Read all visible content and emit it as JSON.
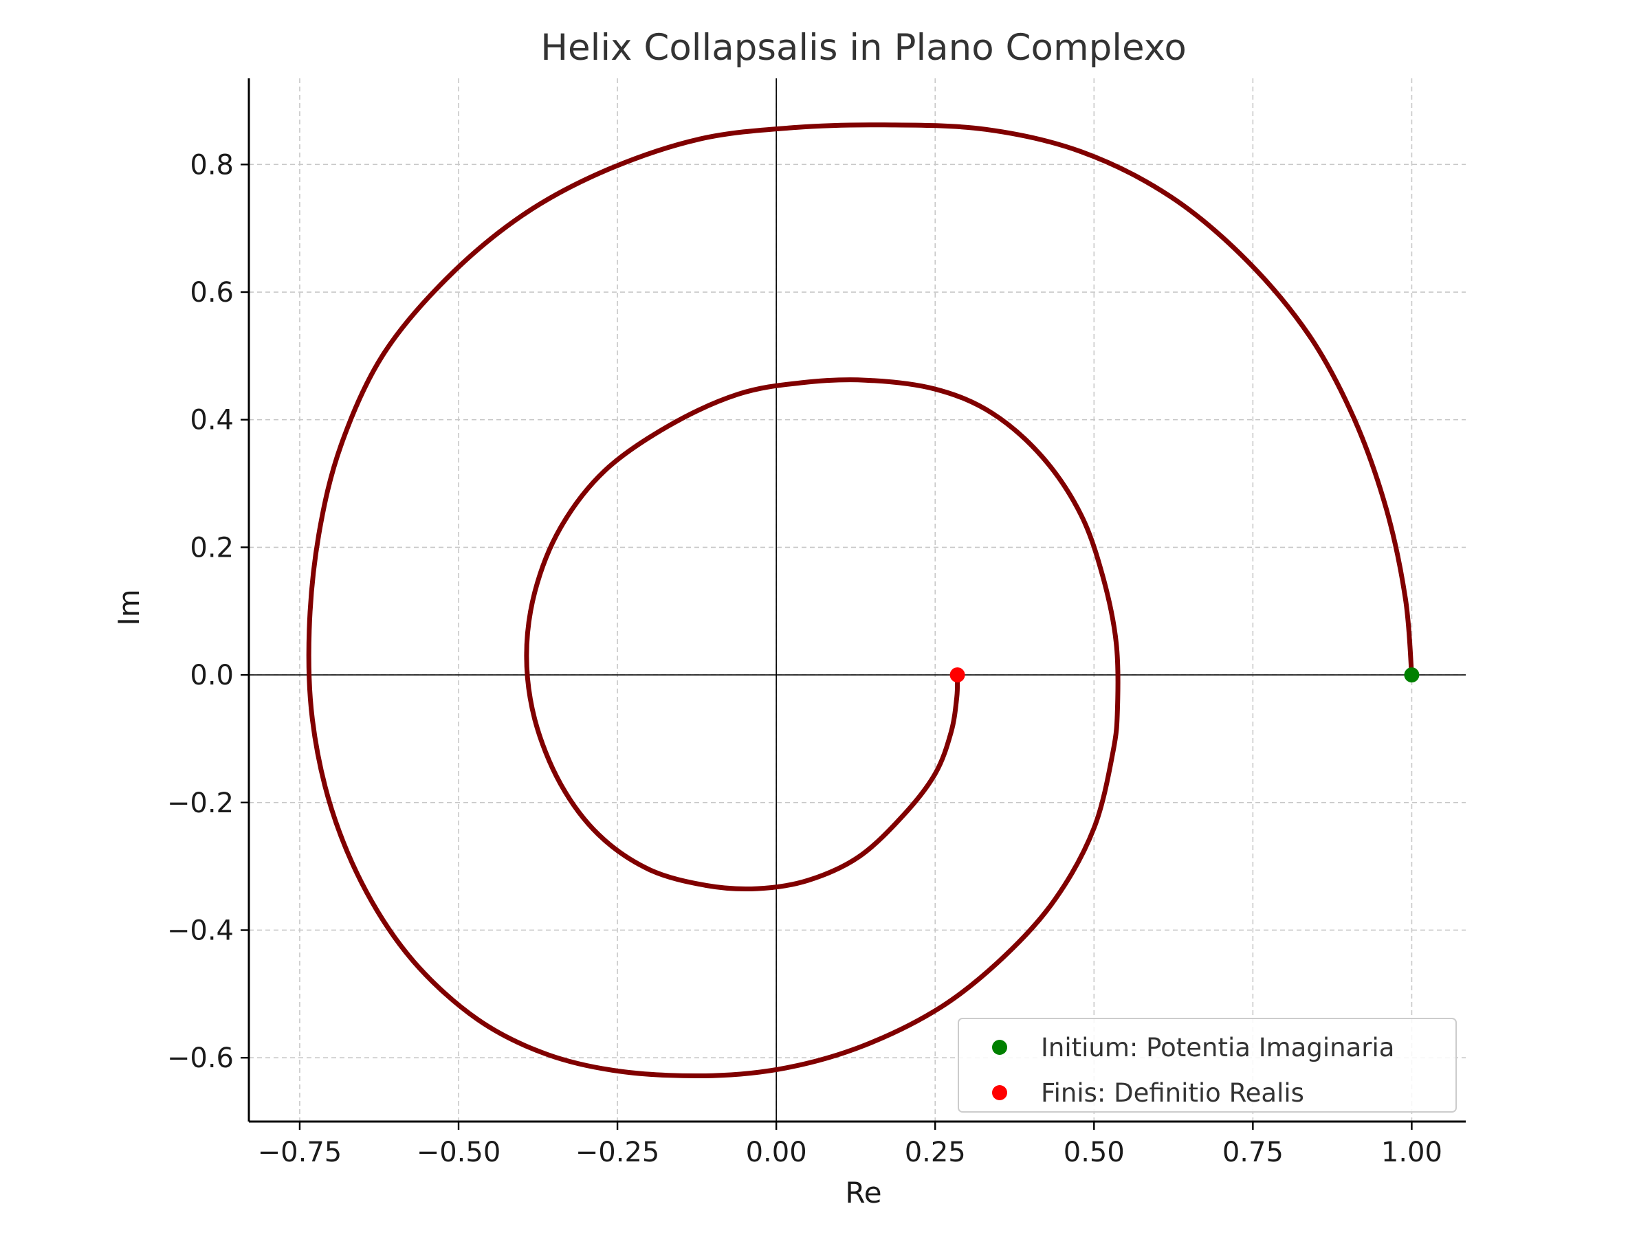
{
  "chart_data": {
    "type": "line",
    "title": "Helix Collapsalis in Plano Complexo",
    "xlabel": "Re",
    "ylabel": "Im",
    "xlim": [
      -0.83,
      1.085
    ],
    "ylim": [
      -0.7,
      0.935
    ],
    "xticks": [
      -0.75,
      -0.5,
      -0.25,
      0.0,
      0.25,
      0.5,
      0.75,
      1.0
    ],
    "xtick_labels": [
      "−0.75",
      "−0.50",
      "−0.25",
      "0.00",
      "0.25",
      "0.50",
      "0.75",
      "1.00"
    ],
    "yticks": [
      -0.6,
      -0.4,
      -0.2,
      0.0,
      0.2,
      0.4,
      0.6,
      0.8
    ],
    "ytick_labels": [
      "−0.6",
      "−0.4",
      "−0.2",
      "0.0",
      "0.2",
      "0.4",
      "0.6",
      "0.8"
    ],
    "grid": true,
    "reference_lines": {
      "x": 0,
      "y": 0
    },
    "series": [
      {
        "kind": "curve",
        "color": "#800000",
        "points": [
          [
            1.0,
            0.0
          ],
          [
            0.99,
            0.12
          ],
          [
            0.96,
            0.26
          ],
          [
            0.91,
            0.4
          ],
          [
            0.84,
            0.53
          ],
          [
            0.74,
            0.65
          ],
          [
            0.62,
            0.75
          ],
          [
            0.48,
            0.82
          ],
          [
            0.33,
            0.855
          ],
          [
            0.17,
            0.862
          ],
          [
            0.03,
            0.858
          ],
          [
            -0.12,
            0.84
          ],
          [
            -0.27,
            0.79
          ],
          [
            -0.4,
            0.72
          ],
          [
            -0.52,
            0.62
          ],
          [
            -0.62,
            0.5
          ],
          [
            -0.685,
            0.36
          ],
          [
            -0.72,
            0.22
          ],
          [
            -0.735,
            0.07
          ],
          [
            -0.73,
            -0.07
          ],
          [
            -0.7,
            -0.21
          ],
          [
            -0.645,
            -0.34
          ],
          [
            -0.57,
            -0.45
          ],
          [
            -0.47,
            -0.54
          ],
          [
            -0.36,
            -0.595
          ],
          [
            -0.24,
            -0.622
          ],
          [
            -0.1,
            -0.628
          ],
          [
            0.02,
            -0.615
          ],
          [
            0.14,
            -0.58
          ],
          [
            0.26,
            -0.52
          ],
          [
            0.36,
            -0.44
          ],
          [
            0.44,
            -0.35
          ],
          [
            0.5,
            -0.24
          ],
          [
            0.53,
            -0.12
          ],
          [
            0.537,
            -0.05
          ],
          [
            0.535,
            0.05
          ],
          [
            0.515,
            0.15
          ],
          [
            0.48,
            0.25
          ],
          [
            0.42,
            0.34
          ],
          [
            0.34,
            0.41
          ],
          [
            0.25,
            0.448
          ],
          [
            0.14,
            0.462
          ],
          [
            0.04,
            0.458
          ],
          [
            -0.06,
            0.44
          ],
          [
            -0.17,
            0.39
          ],
          [
            -0.27,
            0.32
          ],
          [
            -0.34,
            0.23
          ],
          [
            -0.38,
            0.13
          ],
          [
            -0.393,
            0.03
          ],
          [
            -0.38,
            -0.07
          ],
          [
            -0.34,
            -0.17
          ],
          [
            -0.28,
            -0.25
          ],
          [
            -0.2,
            -0.305
          ],
          [
            -0.11,
            -0.33
          ],
          [
            -0.03,
            -0.335
          ],
          [
            0.05,
            -0.322
          ],
          [
            0.13,
            -0.285
          ],
          [
            0.2,
            -0.22
          ],
          [
            0.25,
            -0.155
          ],
          [
            0.275,
            -0.09
          ],
          [
            0.284,
            -0.035
          ],
          [
            0.285,
            0.0
          ]
        ]
      },
      {
        "kind": "point",
        "name": "Initium: Potentia Imaginaria",
        "color": "#008000",
        "x": 1.0,
        "y": 0.0
      },
      {
        "kind": "point",
        "name": "Finis: Definitio Realis",
        "color": "#ff0000",
        "x": 0.285,
        "y": 0.0
      }
    ],
    "legend": {
      "placement": "lower-right",
      "entries": [
        "Initium: Potentia Imaginaria",
        "Finis: Definitio Realis"
      ]
    }
  }
}
